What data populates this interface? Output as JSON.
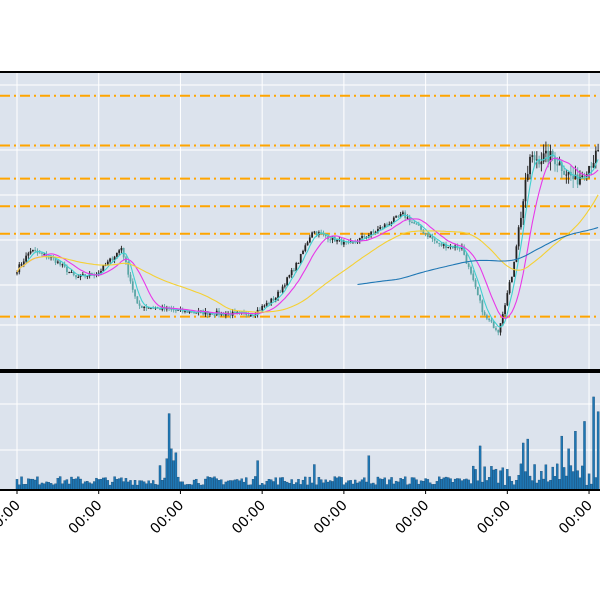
{
  "colors": {
    "panel_bg": "#dce3ed",
    "grid": "#ffffff",
    "frame": "#000000",
    "candle_up": "#222222",
    "candle_down": "#5aa5a5",
    "volume": "#1f77b4",
    "ma_fast": "#40d0d0",
    "ma_mid": "#e838e8",
    "ma_slow": "#f5d033",
    "ma_long": "#1f77b4",
    "support_resistance": "#ffa500"
  },
  "chart_data": [
    {
      "type": "candlestick",
      "title": "",
      "xlabel": "",
      "ylabel": "",
      "grid": true,
      "ylim": [
        0,
        100
      ],
      "x_tick_labels": [
        "00:00",
        "00:00",
        "00:00",
        "00:00",
        "00:00",
        "00:00",
        "00:00",
        "00:00"
      ],
      "x_tick_bars": [
        0,
        36,
        72,
        108,
        144,
        180,
        216,
        252
      ],
      "horizontal_levels": [
        95,
        77,
        65,
        55,
        45,
        15
      ],
      "anchors": [
        [
          0,
          32
        ],
        [
          6,
          39
        ],
        [
          16,
          36
        ],
        [
          26,
          29
        ],
        [
          36,
          31
        ],
        [
          44,
          38
        ],
        [
          46,
          40
        ],
        [
          53,
          19
        ],
        [
          72,
          17
        ],
        [
          92,
          16
        ],
        [
          104,
          16
        ],
        [
          114,
          22
        ],
        [
          124,
          35
        ],
        [
          130,
          46
        ],
        [
          146,
          41
        ],
        [
          158,
          46
        ],
        [
          170,
          52
        ],
        [
          186,
          41
        ],
        [
          196,
          40
        ],
        [
          206,
          15
        ],
        [
          212,
          10
        ],
        [
          218,
          30
        ],
        [
          222,
          52
        ],
        [
          226,
          72
        ],
        [
          236,
          73
        ],
        [
          246,
          64
        ],
        [
          258,
          76
        ],
        [
          266,
          64
        ]
      ],
      "moving_averages": [
        {
          "window": 5,
          "start": 0
        },
        {
          "window": 12,
          "start": 0
        },
        {
          "window": 45,
          "start": 0
        },
        {
          "window": 120,
          "start": 150
        }
      ]
    },
    {
      "type": "bar",
      "title": "",
      "grid": true,
      "ylim": [
        0,
        100
      ],
      "baseline": 5,
      "spikes": [
        [
          18,
          12
        ],
        [
          63,
          25
        ],
        [
          66,
          32
        ],
        [
          67,
          78
        ],
        [
          68,
          42
        ],
        [
          69,
          30
        ],
        [
          70,
          38
        ],
        [
          106,
          30
        ],
        [
          131,
          26
        ],
        [
          155,
          35
        ],
        [
          204,
          45
        ],
        [
          223,
          48
        ],
        [
          225,
          52
        ],
        [
          240,
          55
        ],
        [
          243,
          42
        ],
        [
          246,
          60
        ],
        [
          250,
          70
        ],
        [
          254,
          95
        ],
        [
          256,
          80
        ],
        [
          258,
          62
        ],
        [
          262,
          52
        ]
      ]
    }
  ]
}
